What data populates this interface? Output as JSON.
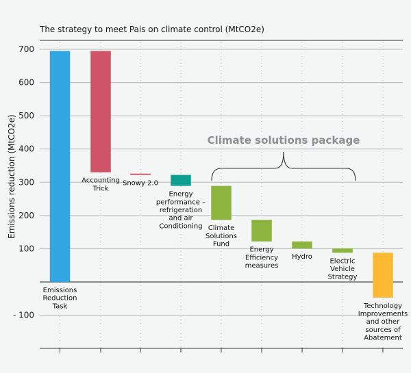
{
  "chart_data": {
    "type": "bar",
    "subtype": "waterfall",
    "title": "The strategy to meet Pais on climate control (MtCO2e)",
    "xlabel": "",
    "ylabel": "Emissions reduction (MtCO2e)",
    "ylim": [
      -200,
      700
    ],
    "yticks": [
      700,
      600,
      500,
      400,
      300,
      200,
      100,
      -100
    ],
    "ytick_labels": [
      "700",
      "600",
      "500",
      "400",
      "300",
      "200",
      "100",
      "- 100"
    ],
    "grid": true,
    "colors": {
      "task": "#31a6e3",
      "trick": "#cf5468",
      "efficiency": "#0e9f91",
      "solutions": "#8cb53f",
      "technology": "#fbb934"
    },
    "bars": [
      {
        "label": "Emissions Reduction Task",
        "lines": [
          "Emissions",
          "Reduction",
          "Task"
        ],
        "start": 0,
        "end": 695,
        "color_key": "task"
      },
      {
        "label": "Accounting Trick",
        "lines": [
          "Accounting",
          "Trick"
        ],
        "start": 330,
        "end": 695,
        "color_key": "trick"
      },
      {
        "label": "Snowy 2.0",
        "lines": [
          "Snowy 2.0"
        ],
        "start": 322,
        "end": 326,
        "color_key": "trick"
      },
      {
        "label": "Energy performance – refrigeration and air Conditioning",
        "lines": [
          "Energy",
          "performance –",
          "refrigeration",
          "and air",
          "Conditioning"
        ],
        "start": 289,
        "end": 322,
        "color_key": "efficiency"
      },
      {
        "label": "Climate Solutions Fund",
        "lines": [
          "Climate",
          "Solutions",
          "Fund"
        ],
        "start": 187,
        "end": 289,
        "color_key": "solutions"
      },
      {
        "label": "Energy Efficiency measures",
        "lines": [
          "Energy",
          "Efficiency",
          "measures"
        ],
        "start": 122,
        "end": 187,
        "color_key": "solutions"
      },
      {
        "label": "Hydro",
        "lines": [
          "Hydro"
        ],
        "start": 101,
        "end": 122,
        "color_key": "solutions"
      },
      {
        "label": "Electric Vehicle Strategy",
        "lines": [
          "Electric",
          "Vehicle",
          "Strategy"
        ],
        "start": 88,
        "end": 101,
        "color_key": "solutions"
      },
      {
        "label": "Technology Improvements and other sources of Abatement",
        "lines": [
          "Technology",
          "Improvements",
          "and other",
          "sources of",
          "Abatement"
        ],
        "start": -47,
        "end": 88,
        "color_key": "technology"
      }
    ],
    "annotation": {
      "text": "Climate solutions package",
      "bracket_from_bar": 4,
      "bracket_to_bar": 7
    }
  }
}
